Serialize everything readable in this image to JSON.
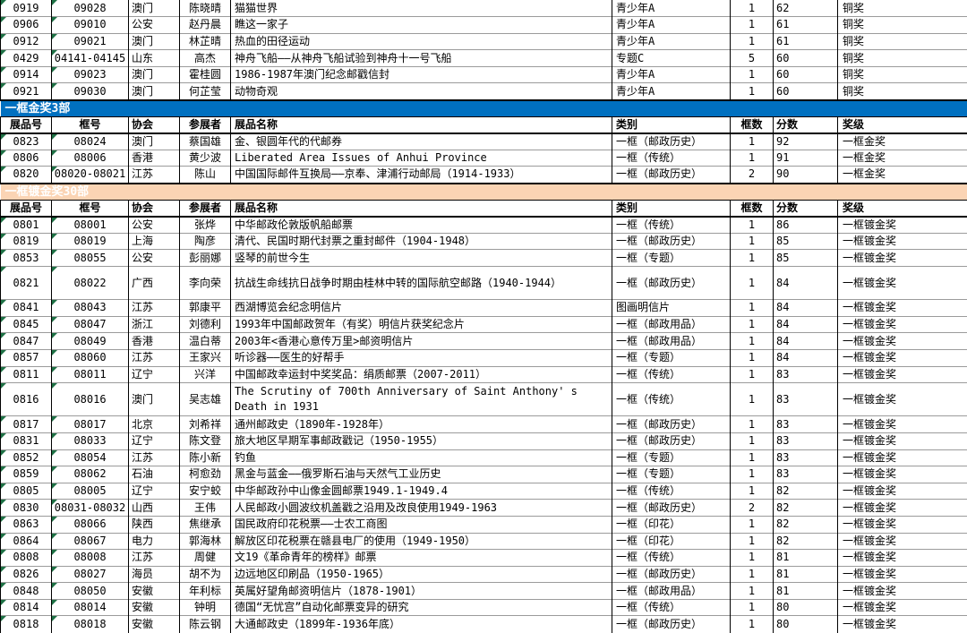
{
  "icons": {
    "error_indicator": "green-corner-triangle"
  },
  "colors": {
    "triangle_green": "#1E7145",
    "gridline": "#9B9B9B",
    "border": "#000000"
  },
  "table": {
    "columns": [
      "展品号",
      "框号",
      "协会",
      "参展者",
      "展品名称",
      "类别",
      "框数",
      "分数",
      "奖级"
    ],
    "top_rows": [
      {
        "cells": [
          "0919",
          "09028",
          "澳门",
          "陈晓晴",
          "猫猫世界",
          "青少年A",
          "1",
          "62",
          "铜奖"
        ]
      },
      {
        "cells": [
          "0906",
          "09010",
          "公安",
          "赵丹晨",
          "瞧这一家子",
          "青少年A",
          "1",
          "61",
          "铜奖"
        ]
      },
      {
        "cells": [
          "0912",
          "09021",
          "澳门",
          "林芷晴",
          "热血的田径运动",
          "青少年A",
          "1",
          "61",
          "铜奖"
        ]
      },
      {
        "cells": [
          "0429",
          "04141-04145",
          "山东",
          "高杰",
          "神舟飞船——从神舟飞船试验到神舟十一号飞船",
          "专题C",
          "5",
          "60",
          "铜奖"
        ]
      },
      {
        "cells": [
          "0914",
          "09023",
          "澳门",
          "霍桂圆",
          "1986-1987年澳门纪念邮戳信封",
          "青少年A",
          "1",
          "60",
          "铜奖"
        ]
      },
      {
        "cells": [
          "0921",
          "09030",
          "澳门",
          "何芷莹",
          "动物奇观",
          "青少年A",
          "1",
          "60",
          "铜奖"
        ]
      }
    ],
    "sections": [
      {
        "title": "一框金奖3部",
        "bar_color": "#0070C0",
        "bar_text_color": "#FFFFFF",
        "rows": [
          {
            "cells": [
              "0823",
              "08024",
              "澳门",
              "蔡国雄",
              "金、银圆年代的代邮券",
              "一框（邮政历史）",
              "1",
              "92",
              "一框金奖"
            ]
          },
          {
            "cells": [
              "0806",
              "08006",
              "香港",
              "黄少波",
              "Liberated Area Issues of Anhui Province",
              "一框（传统）",
              "1",
              "91",
              "一框金奖"
            ]
          },
          {
            "cells": [
              "0820",
              "08020-08021",
              "江苏",
              "陈山",
              "中国国际邮件互换局——京奉、津浦行动邮局（1914-1933）",
              "一框（邮政历史）",
              "2",
              "90",
              "一框金奖"
            ]
          }
        ]
      },
      {
        "title": "一框镀金奖30部",
        "bar_color": "#FBD4B4",
        "bar_text_color": "#FFFFFF",
        "rows": [
          {
            "cells": [
              "0801",
              "08001",
              "公安",
              "张烨",
              "中华邮政伦敦版帆船邮票",
              "一框（传统）",
              "1",
              "86",
              "一框镀金奖"
            ]
          },
          {
            "cells": [
              "0819",
              "08019",
              "上海",
              "陶彦",
              "清代、民国时期代封票之重封邮件（1904-1948）",
              "一框（邮政历史）",
              "1",
              "85",
              "一框镀金奖"
            ]
          },
          {
            "cells": [
              "0853",
              "08055",
              "公安",
              "彭丽娜",
              "竖琴的前世今生",
              "一框（专题）",
              "1",
              "85",
              "一框镀金奖"
            ]
          },
          {
            "cells": [
              "0821",
              "08022",
              "广西",
              "李向荣",
              "抗战生命线抗日战争时期由桂林中转的国际航空邮路（1940-1944）",
              "一框（邮政历史）",
              "1",
              "84",
              "一框镀金奖"
            ],
            "tall": true
          },
          {
            "cells": [
              "0841",
              "08043",
              "江苏",
              "郭康平",
              "西湖博览会纪念明信片",
              "图画明信片",
              "1",
              "84",
              "一框镀金奖"
            ]
          },
          {
            "cells": [
              "0845",
              "08047",
              "浙江",
              "刘德利",
              "1993年中国邮政贺年（有奖）明信片获奖纪念片",
              "一框（邮政用品）",
              "1",
              "84",
              "一框镀金奖"
            ]
          },
          {
            "cells": [
              "0847",
              "08049",
              "香港",
              "温白蒂",
              "2003年<香港心意传万里>邮资明信片",
              "一框（邮政用品）",
              "1",
              "84",
              "一框镀金奖"
            ]
          },
          {
            "cells": [
              "0857",
              "08060",
              "江苏",
              "王家兴",
              "听诊器——医生的好帮手",
              "一框（专题）",
              "1",
              "84",
              "一框镀金奖"
            ]
          },
          {
            "cells": [
              "0811",
              "08011",
              "辽宁",
              "兴洋",
              "中国邮政幸运封中奖奖品：绢质邮票（2007-2011）",
              "一框（传统）",
              "1",
              "83",
              "一框镀金奖"
            ]
          },
          {
            "cells": [
              "0816",
              "08016",
              "澳门",
              "吴志雄",
              "The Scrutiny of 700th Anniversary of Saint Anthony' s Death in 1931",
              "一框（传统）",
              "1",
              "83",
              "一框镀金奖"
            ],
            "tall": true
          },
          {
            "cells": [
              "0817",
              "08017",
              "北京",
              "刘希祥",
              "通州邮政史（1890年-1928年）",
              "一框（邮政历史）",
              "1",
              "83",
              "一框镀金奖"
            ]
          },
          {
            "cells": [
              "0831",
              "08033",
              "辽宁",
              "陈文登",
              "旅大地区早期军事邮政戳记（1950-1955）",
              "一框（邮政历史）",
              "1",
              "83",
              "一框镀金奖"
            ]
          },
          {
            "cells": [
              "0852",
              "08054",
              "江苏",
              "陈小新",
              "钓鱼",
              "一框（专题）",
              "1",
              "83",
              "一框镀金奖"
            ]
          },
          {
            "cells": [
              "0859",
              "08062",
              "石油",
              "柯愈劲",
              "黑金与蓝金——俄罗斯石油与天然气工业历史",
              "一框（专题）",
              "1",
              "83",
              "一框镀金奖"
            ]
          },
          {
            "cells": [
              "0805",
              "08005",
              "辽宁",
              "安宁蛟",
              "中华邮政孙中山像金圆邮票1949.1-1949.4",
              "一框（传统）",
              "1",
              "82",
              "一框镀金奖"
            ]
          },
          {
            "cells": [
              "0830",
              "08031-08032",
              "山西",
              "王伟",
              "人民邮政小圆波纹机盖戳之沿用及改良使用1949-1963",
              "一框（邮政历史）",
              "2",
              "82",
              "一框镀金奖"
            ]
          },
          {
            "cells": [
              "0863",
              "08066",
              "陕西",
              "焦继承",
              "国民政府印花税票——士农工商图",
              "一框（印花）",
              "1",
              "82",
              "一框镀金奖"
            ]
          },
          {
            "cells": [
              "0864",
              "08067",
              "电力",
              "郭海林",
              "解放区印花税票在赣县电厂的使用（1949-1950）",
              "一框（印花）",
              "1",
              "82",
              "一框镀金奖"
            ]
          },
          {
            "cells": [
              "0808",
              "08008",
              "江苏",
              "周健",
              "文19《革命青年的榜样》邮票",
              "一框（传统）",
              "1",
              "81",
              "一框镀金奖"
            ]
          },
          {
            "cells": [
              "0826",
              "08027",
              "海员",
              "胡不为",
              "边远地区印刷品（1950-1965）",
              "一框（邮政历史）",
              "1",
              "81",
              "一框镀金奖"
            ]
          },
          {
            "cells": [
              "0848",
              "08050",
              "安徽",
              "年利标",
              "英属好望角邮资明信片（1878-1901）",
              "一框（邮政用品）",
              "1",
              "81",
              "一框镀金奖"
            ]
          },
          {
            "cells": [
              "0814",
              "08014",
              "安徽",
              "钟明",
              "德国“无忧宫”自动化邮票变异的研究",
              "一框（传统）",
              "1",
              "80",
              "一框镀金奖"
            ]
          },
          {
            "cells": [
              "0818",
              "08018",
              "安徽",
              "陈云钢",
              "大通邮政史（1899年-1936年底）",
              "一框（邮政历史）",
              "1",
              "80",
              "一框镀金奖"
            ]
          }
        ]
      }
    ]
  }
}
